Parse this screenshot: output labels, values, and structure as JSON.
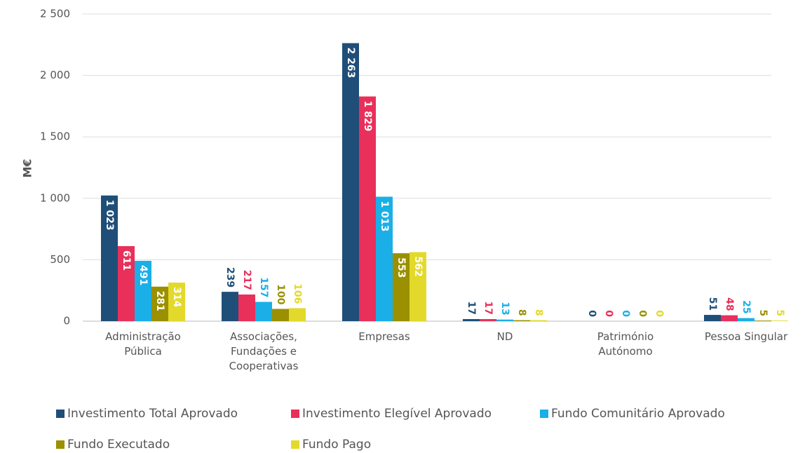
{
  "chart_data": {
    "type": "bar",
    "y_label": "M€",
    "categories": [
      "Administração Pública",
      "Associações, Fundações e Cooperativas",
      "Empresas",
      "ND",
      "Património Autónomo",
      "Pessoa Singular"
    ],
    "series": [
      {
        "name": "Investimento Total Aprovado",
        "color": "#1f4e79",
        "values": [
          1023,
          239,
          2263,
          17,
          0,
          51
        ],
        "value_labels": [
          "1 023",
          "239",
          "2 263",
          "17",
          "0",
          "51"
        ]
      },
      {
        "name": "Investimento Elegível Aprovado",
        "color": "#e8305a",
        "values": [
          611,
          217,
          1829,
          17,
          0,
          48
        ],
        "value_labels": [
          "611",
          "217",
          "1 829",
          "17",
          "0",
          "48"
        ]
      },
      {
        "name": "Fundo Comunitário Aprovado",
        "color": "#1aafe6",
        "values": [
          491,
          157,
          1013,
          13,
          0,
          25
        ],
        "value_labels": [
          "491",
          "157",
          "1 013",
          "13",
          "0",
          "25"
        ]
      },
      {
        "name": "Fundo Executado",
        "color": "#9a9000",
        "values": [
          281,
          100,
          553,
          8,
          0,
          5
        ],
        "value_labels": [
          "281",
          "100",
          "553",
          "8",
          "0",
          "5"
        ]
      },
      {
        "name": "Fundo Pago",
        "color": "#e3d92b",
        "values": [
          314,
          106,
          562,
          8,
          0,
          5
        ],
        "value_labels": [
          "314",
          "106",
          "562",
          "8",
          "0",
          "5"
        ]
      }
    ],
    "ylim": [
      0,
      2500
    ],
    "yticks": [
      0,
      500,
      {
        "value": 1000,
        "label": "1 000"
      },
      {
        "value": 1500,
        "label": "1 500"
      },
      {
        "value": 2000,
        "label": "2 000"
      },
      {
        "value": 2500,
        "label": "2 500"
      }
    ],
    "grid": true
  }
}
